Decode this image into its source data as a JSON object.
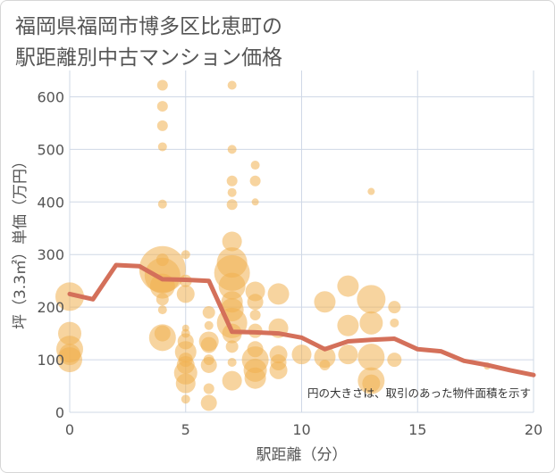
{
  "title_line1": "福岡県福岡市博多区比恵町の",
  "title_line2": "駅距離別中古マンション価格",
  "note": "円の大きさは、取引のあった物件面積を示す",
  "colors": {
    "bubble": "#f0b050",
    "line": "#d4705a",
    "grid": "#cfd8e6",
    "text": "#555555"
  },
  "chart_data": {
    "type": "scatter",
    "title": "福岡県福岡市博多区比恵町の駅距離別中古マンション価格",
    "xlabel": "駅距離（分）",
    "ylabel": "坪（3.3㎡）単価（万円）",
    "xlim": [
      0,
      20
    ],
    "ylim": [
      0,
      650
    ],
    "x_ticks": [
      0,
      5,
      10,
      15,
      20
    ],
    "y_ticks": [
      0,
      100,
      200,
      300,
      400,
      500,
      600
    ],
    "grid": true,
    "bubbles": [
      {
        "x": 0,
        "y": 220,
        "r": 16
      },
      {
        "x": 0,
        "y": 150,
        "r": 13
      },
      {
        "x": 0,
        "y": 120,
        "r": 15
      },
      {
        "x": 0,
        "y": 100,
        "r": 14
      },
      {
        "x": 0,
        "y": 110,
        "r": 12
      },
      {
        "x": 4,
        "y": 622,
        "r": 6
      },
      {
        "x": 4,
        "y": 582,
        "r": 6
      },
      {
        "x": 4,
        "y": 545,
        "r": 6
      },
      {
        "x": 4,
        "y": 505,
        "r": 5
      },
      {
        "x": 4,
        "y": 396,
        "r": 5
      },
      {
        "x": 4,
        "y": 290,
        "r": 7
      },
      {
        "x": 4,
        "y": 272,
        "r": 26
      },
      {
        "x": 4,
        "y": 260,
        "r": 20
      },
      {
        "x": 4,
        "y": 240,
        "r": 14
      },
      {
        "x": 4,
        "y": 215,
        "r": 7
      },
      {
        "x": 4,
        "y": 195,
        "r": 5
      },
      {
        "x": 4,
        "y": 150,
        "r": 9
      },
      {
        "x": 4,
        "y": 142,
        "r": 15
      },
      {
        "x": 5,
        "y": 300,
        "r": 5
      },
      {
        "x": 5,
        "y": 250,
        "r": 7
      },
      {
        "x": 5,
        "y": 225,
        "r": 10
      },
      {
        "x": 5,
        "y": 160,
        "r": 4
      },
      {
        "x": 5,
        "y": 150,
        "r": 5
      },
      {
        "x": 5,
        "y": 135,
        "r": 9
      },
      {
        "x": 5,
        "y": 115,
        "r": 12
      },
      {
        "x": 5,
        "y": 100,
        "r": 8
      },
      {
        "x": 5,
        "y": 90,
        "r": 10
      },
      {
        "x": 5,
        "y": 75,
        "r": 13
      },
      {
        "x": 5,
        "y": 55,
        "r": 11
      },
      {
        "x": 5,
        "y": 25,
        "r": 5
      },
      {
        "x": 6,
        "y": 190,
        "r": 7
      },
      {
        "x": 6,
        "y": 165,
        "r": 5
      },
      {
        "x": 6,
        "y": 135,
        "r": 11
      },
      {
        "x": 6,
        "y": 128,
        "r": 9
      },
      {
        "x": 6,
        "y": 100,
        "r": 6
      },
      {
        "x": 6,
        "y": 90,
        "r": 9
      },
      {
        "x": 6,
        "y": 45,
        "r": 6
      },
      {
        "x": 6,
        "y": 18,
        "r": 9
      },
      {
        "x": 7,
        "y": 622,
        "r": 5
      },
      {
        "x": 7,
        "y": 500,
        "r": 5
      },
      {
        "x": 7,
        "y": 440,
        "r": 6
      },
      {
        "x": 7,
        "y": 418,
        "r": 5
      },
      {
        "x": 7,
        "y": 395,
        "r": 6
      },
      {
        "x": 7,
        "y": 325,
        "r": 11
      },
      {
        "x": 7,
        "y": 285,
        "r": 17
      },
      {
        "x": 7,
        "y": 265,
        "r": 20
      },
      {
        "x": 7,
        "y": 240,
        "r": 15
      },
      {
        "x": 7,
        "y": 210,
        "r": 12
      },
      {
        "x": 7,
        "y": 195,
        "r": 13
      },
      {
        "x": 7,
        "y": 170,
        "r": 17
      },
      {
        "x": 7,
        "y": 150,
        "r": 11
      },
      {
        "x": 7,
        "y": 125,
        "r": 7
      },
      {
        "x": 7,
        "y": 95,
        "r": 5
      },
      {
        "x": 7,
        "y": 60,
        "r": 11
      },
      {
        "x": 8,
        "y": 470,
        "r": 5
      },
      {
        "x": 8,
        "y": 440,
        "r": 6
      },
      {
        "x": 8,
        "y": 400,
        "r": 4
      },
      {
        "x": 8,
        "y": 230,
        "r": 11
      },
      {
        "x": 8,
        "y": 210,
        "r": 9
      },
      {
        "x": 8,
        "y": 185,
        "r": 6
      },
      {
        "x": 8,
        "y": 155,
        "r": 8
      },
      {
        "x": 8,
        "y": 120,
        "r": 9
      },
      {
        "x": 8,
        "y": 100,
        "r": 15
      },
      {
        "x": 8,
        "y": 80,
        "r": 13
      },
      {
        "x": 8,
        "y": 65,
        "r": 12
      },
      {
        "x": 9,
        "y": 225,
        "r": 12
      },
      {
        "x": 9,
        "y": 160,
        "r": 11
      },
      {
        "x": 9,
        "y": 110,
        "r": 10
      },
      {
        "x": 9,
        "y": 95,
        "r": 9
      },
      {
        "x": 9,
        "y": 80,
        "r": 10
      },
      {
        "x": 10,
        "y": 110,
        "r": 11
      },
      {
        "x": 11,
        "y": 210,
        "r": 12
      },
      {
        "x": 11,
        "y": 105,
        "r": 12
      },
      {
        "x": 11,
        "y": 90,
        "r": 6
      },
      {
        "x": 12,
        "y": 240,
        "r": 12
      },
      {
        "x": 12,
        "y": 165,
        "r": 12
      },
      {
        "x": 12,
        "y": 110,
        "r": 11
      },
      {
        "x": 13,
        "y": 420,
        "r": 4
      },
      {
        "x": 13,
        "y": 215,
        "r": 16
      },
      {
        "x": 13,
        "y": 170,
        "r": 13
      },
      {
        "x": 13,
        "y": 105,
        "r": 15
      },
      {
        "x": 13,
        "y": 60,
        "r": 15
      },
      {
        "x": 13,
        "y": 55,
        "r": 10
      },
      {
        "x": 14,
        "y": 200,
        "r": 7
      },
      {
        "x": 14,
        "y": 170,
        "r": 5
      },
      {
        "x": 14,
        "y": 100,
        "r": 8
      },
      {
        "x": 18,
        "y": 88,
        "r": 4
      }
    ],
    "series": [
      {
        "type": "line",
        "x": [
          0,
          1,
          2,
          3,
          4,
          5,
          6,
          7,
          8,
          9,
          10,
          11,
          12,
          13,
          14,
          15,
          16,
          17,
          18,
          19,
          20
        ],
        "values": [
          225,
          215,
          280,
          278,
          253,
          252,
          250,
          153,
          152,
          150,
          142,
          120,
          135,
          138,
          140,
          120,
          116,
          98,
          90,
          80,
          71
        ]
      }
    ]
  }
}
